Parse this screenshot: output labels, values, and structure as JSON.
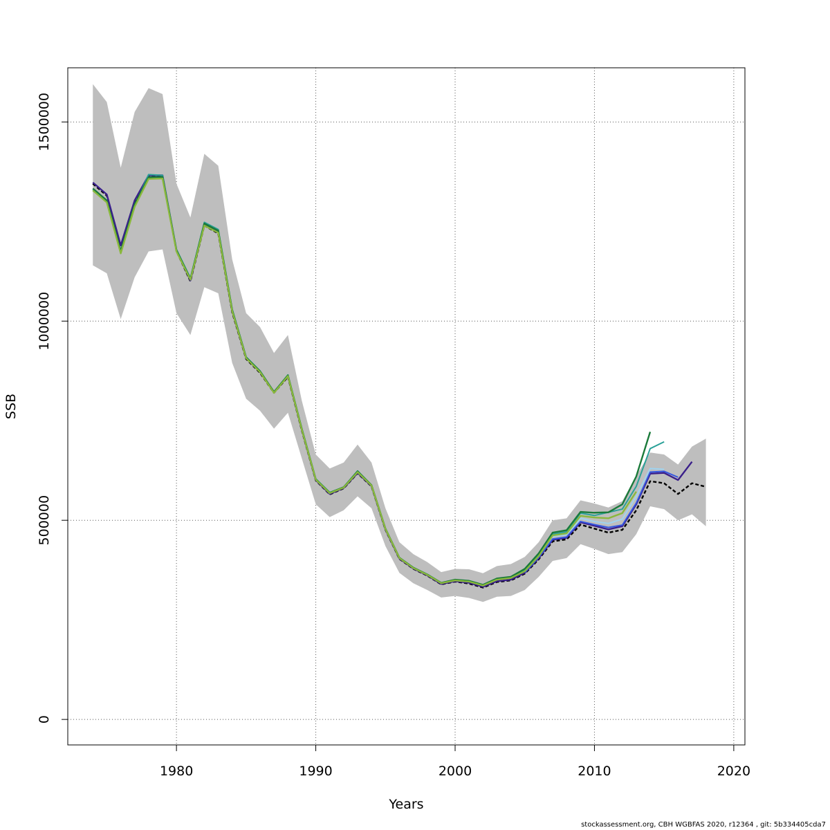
{
  "chart_data": {
    "type": "line",
    "title": "",
    "xlabel": "Years",
    "ylabel": "SSB",
    "xlim": [
      1972.2,
      2020.8
    ],
    "ylim": [
      -64000,
      1636000
    ],
    "x_ticks": [
      1980,
      1990,
      2000,
      2010,
      2020
    ],
    "y_ticks": [
      0,
      500000,
      1000000,
      1500000
    ],
    "x_tick_labels": [
      "1980",
      "1990",
      "2000",
      "2010",
      "2020"
    ],
    "y_tick_labels": [
      "0",
      "500000",
      "1000000",
      "1500000"
    ],
    "grid": true,
    "legend": "none",
    "confidence_band": {
      "color": "#bebebe",
      "x": [
        1974,
        1975,
        1976,
        1977,
        1978,
        1979,
        1980,
        1981,
        1982,
        1983,
        1984,
        1985,
        1986,
        1987,
        1988,
        1989,
        1990,
        1991,
        1992,
        1993,
        1994,
        1995,
        1996,
        1997,
        1998,
        1999,
        2000,
        2001,
        2002,
        2003,
        2004,
        2005,
        2006,
        2007,
        2008,
        2009,
        2010,
        2011,
        2012,
        2013,
        2014,
        2015,
        2016,
        2017,
        2018
      ],
      "upper": [
        1595000,
        1550000,
        1385000,
        1525000,
        1585000,
        1570000,
        1345000,
        1260000,
        1420000,
        1390000,
        1155000,
        1020000,
        985000,
        920000,
        965000,
        800000,
        665000,
        630000,
        645000,
        690000,
        645000,
        530000,
        445000,
        415000,
        395000,
        370000,
        378000,
        377000,
        367000,
        385000,
        390000,
        408000,
        445000,
        500000,
        505000,
        550000,
        542000,
        532000,
        548000,
        612000,
        670000,
        665000,
        640000,
        685000,
        705000
      ],
      "lower": [
        1140000,
        1120000,
        1005000,
        1110000,
        1175000,
        1180000,
        1020000,
        965000,
        1085000,
        1070000,
        895000,
        805000,
        775000,
        730000,
        770000,
        655000,
        540000,
        508000,
        525000,
        560000,
        530000,
        435000,
        368000,
        342000,
        325000,
        306000,
        310000,
        305000,
        295000,
        308000,
        310000,
        325000,
        358000,
        398000,
        405000,
        440000,
        428000,
        415000,
        420000,
        465000,
        535000,
        528000,
        500000,
        515000,
        485000
      ]
    },
    "series": [
      {
        "color": "#000000",
        "dashed": true,
        "width": 2.4,
        "x": [
          1974,
          1975,
          1976,
          1977,
          1978,
          1979,
          1980,
          1981,
          1982,
          1983,
          1984,
          1985,
          1986,
          1987,
          1988,
          1989,
          1990,
          1991,
          1992,
          1993,
          1994,
          1995,
          1996,
          1997,
          1998,
          1999,
          2000,
          2001,
          2002,
          2003,
          2004,
          2005,
          2006,
          2007,
          2008,
          2009,
          2010,
          2011,
          2012,
          2013,
          2014,
          2015,
          2016,
          2017,
          2018
        ],
        "y": [
          1345000,
          1315000,
          1188000,
          1300000,
          1363000,
          1363000,
          1176000,
          1100000,
          1240000,
          1220000,
          1022000,
          905000,
          870000,
          820000,
          860000,
          725000,
          600000,
          565000,
          580000,
          618000,
          585000,
          476000,
          403000,
          378000,
          361000,
          339000,
          346000,
          341000,
          331000,
          345000,
          349000,
          366000,
          402000,
          447000,
          452000,
          489000,
          479000,
          469000,
          476000,
          525000,
          598000,
          593000,
          566000,
          593000,
          584000
        ]
      },
      {
        "color": "#3a1f8a",
        "dashed": false,
        "width": 2.4,
        "x": [
          1974,
          1975,
          1976,
          1977,
          1978,
          1979,
          1980,
          1981,
          1982,
          1983,
          1984,
          1985,
          1986,
          1987,
          1988,
          1989,
          1990,
          1991,
          1992,
          1993,
          1994,
          1995,
          1996,
          1997,
          1998,
          1999,
          2000,
          2001,
          2002,
          2003,
          2004,
          2005,
          2006,
          2007,
          2008,
          2009,
          2010,
          2011,
          2012,
          2013,
          2014,
          2015,
          2016,
          2017
        ],
        "y": [
          1348000,
          1318000,
          1190000,
          1303000,
          1366000,
          1366000,
          1178000,
          1102000,
          1243000,
          1224000,
          1025000,
          907000,
          872000,
          822000,
          862000,
          727000,
          601000,
          566000,
          581000,
          619000,
          586000,
          477000,
          404000,
          379000,
          362000,
          340000,
          347000,
          343000,
          333000,
          347000,
          351000,
          368000,
          405000,
          451000,
          456000,
          495000,
          486000,
          477000,
          485000,
          540000,
          617000,
          619000,
          601000,
          647000
        ]
      },
      {
        "color": "#3355e0",
        "dashed": false,
        "width": 2.0,
        "x": [
          2005,
          2006,
          2007,
          2008,
          2009,
          2010,
          2011,
          2012,
          2013,
          2014,
          2015,
          2016
        ],
        "y": [
          369000,
          407000,
          453000,
          458000,
          497000,
          489000,
          482000,
          488000,
          543000,
          621000,
          623000,
          608000
        ]
      },
      {
        "color": "#9fd3f0",
        "dashed": false,
        "width": 2.0,
        "x": [
          2006,
          2007,
          2008,
          2009,
          2010,
          2011,
          2012,
          2013,
          2014,
          2015
        ],
        "y": [
          410000,
          460000,
          464000,
          505000,
          497000,
          492000,
          503000,
          560000,
          630000,
          628000
        ]
      },
      {
        "color": "#2aa198",
        "dashed": false,
        "width": 2.0,
        "x": [
          1974,
          1975,
          1976,
          1977,
          1978,
          1979,
          1980,
          1981,
          1982,
          1983,
          1984,
          1985,
          1986,
          1987,
          1988,
          1989,
          1990,
          1991,
          1992,
          1993,
          1994,
          1995,
          1996,
          1997,
          1998,
          1999,
          2000,
          2001,
          2002,
          2003,
          2004,
          2005,
          2006,
          2007,
          2008,
          2009,
          2010,
          2011,
          2012,
          2013,
          2014,
          2015
        ],
        "y": [
          1330000,
          1300000,
          1172000,
          1290000,
          1368000,
          1366000,
          1180000,
          1108000,
          1248000,
          1230000,
          1030000,
          910000,
          875000,
          822000,
          865000,
          730000,
          604000,
          570000,
          583000,
          624000,
          588000,
          479000,
          406000,
          381000,
          364000,
          342000,
          350000,
          347000,
          337000,
          352000,
          356000,
          375000,
          412000,
          465000,
          471000,
          518000,
          512000,
          520000,
          528000,
          585000,
          680000,
          697000
        ]
      },
      {
        "color": "#1a7a3a",
        "dashed": false,
        "width": 2.4,
        "x": [
          1974,
          1975,
          1976,
          1977,
          1978,
          1979,
          1980,
          1981,
          1982,
          1983,
          1984,
          1985,
          1986,
          1987,
          1988,
          1989,
          1990,
          1991,
          1992,
          1993,
          1994,
          1995,
          1996,
          1997,
          1998,
          1999,
          2000,
          2001,
          2002,
          2003,
          2004,
          2005,
          2006,
          2007,
          2008,
          2009,
          2010,
          2011,
          2012,
          2013,
          2014
        ],
        "y": [
          1333000,
          1303000,
          1176000,
          1293000,
          1361000,
          1362000,
          1178000,
          1106000,
          1245000,
          1227000,
          1028000,
          909000,
          874000,
          822000,
          864000,
          729000,
          603000,
          569000,
          583000,
          623000,
          588000,
          479000,
          406000,
          381000,
          364000,
          343000,
          351000,
          348000,
          338000,
          354000,
          358000,
          378000,
          417000,
          469000,
          475000,
          521000,
          519000,
          520000,
          540000,
          610000,
          722000
        ]
      },
      {
        "color": "#8ab83c",
        "dashed": false,
        "width": 2.4,
        "x": [
          1974,
          1975,
          1976,
          1977,
          1978,
          1979,
          1980,
          1981,
          1982,
          1983,
          1984,
          1985,
          1986,
          1987,
          1988,
          1989,
          1990,
          1991,
          1992,
          1993,
          1994,
          1995,
          1996,
          1997,
          1998,
          1999,
          2000,
          2001,
          2002,
          2003,
          2004,
          2005,
          2006,
          2007,
          2008,
          2009,
          2010,
          2011,
          2012,
          2013
        ],
        "y": [
          1328000,
          1298000,
          1170000,
          1287000,
          1357000,
          1358000,
          1175000,
          1104000,
          1240000,
          1222000,
          1025000,
          907000,
          872000,
          820000,
          862000,
          727000,
          602000,
          568000,
          582000,
          621000,
          587000,
          478000,
          405000,
          380000,
          363000,
          342000,
          349000,
          346000,
          336000,
          351000,
          355000,
          372000,
          410000,
          462000,
          467000,
          511000,
          507000,
          505000,
          518000,
          572000
        ]
      }
    ]
  },
  "footer": {
    "text": "stockassessment.org, CBH  WGBFAS  2020, r12364 , git: 5b334405cda7"
  }
}
